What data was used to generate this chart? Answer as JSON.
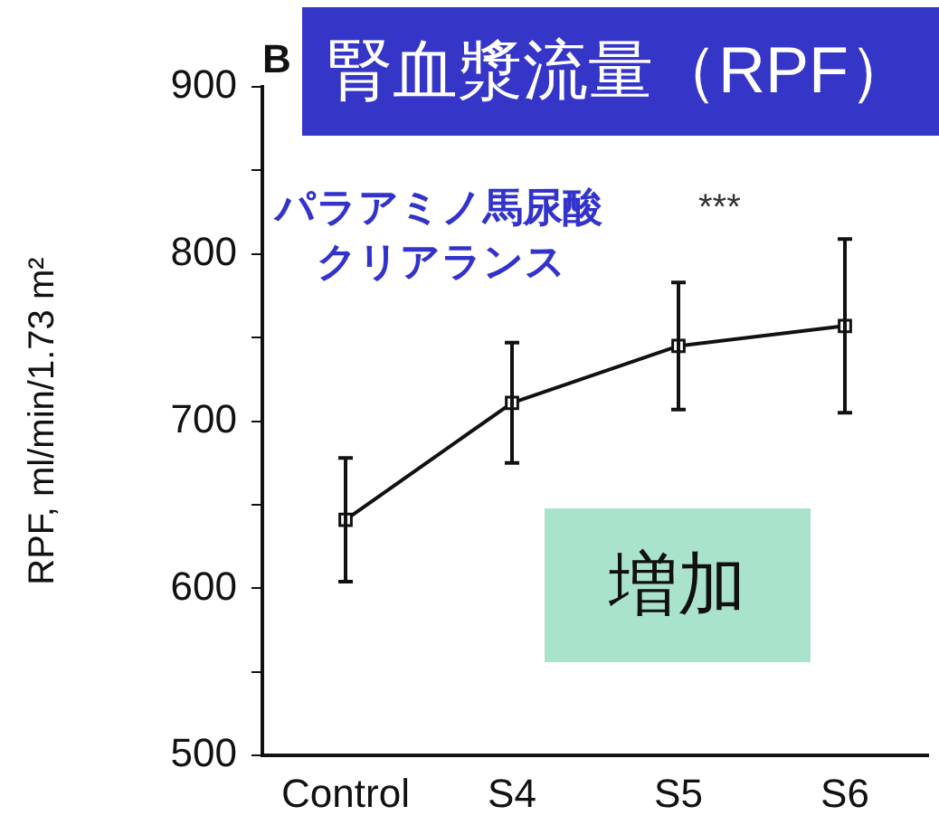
{
  "chart_data": {
    "type": "line",
    "title": "腎血漿流量（RPF）",
    "ylabel": "RPF, ml/min/1.73 m²",
    "categories": [
      "Control",
      "S4",
      "S5",
      "S6"
    ],
    "values": [
      641,
      711,
      745,
      757
    ],
    "errors": [
      37,
      36,
      38,
      52
    ],
    "color": "#111111",
    "marker": "square",
    "line_style": "solid",
    "grid": false,
    "legend": false,
    "ylim": [
      500,
      900
    ],
    "yticks": [
      500,
      {
        "value": 550,
        "label": null
      },
      600,
      {
        "value": 650,
        "label": null
      },
      700,
      {
        "value": 750,
        "label": null
      },
      800,
      {
        "value": 850,
        "label": null
      },
      900
    ],
    "annotations": [
      "B",
      "パラアミノ馬尿酸",
      "クリアランス",
      "***",
      "増加"
    ]
  }
}
